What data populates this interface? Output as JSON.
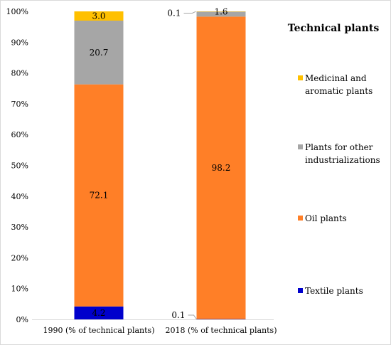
{
  "chart_data": {
    "type": "bar",
    "stacked": true,
    "percent": true,
    "legend_title": "Technical plants",
    "legend_position": "right",
    "categories": [
      "1990 (% of technical plants)",
      "2018 (% of technical plants)"
    ],
    "y_ticks": [
      "0%",
      "10%",
      "20%",
      "30%",
      "40%",
      "50%",
      "60%",
      "70%",
      "80%",
      "90%",
      "100%"
    ],
    "ylim": [
      0,
      100
    ],
    "series": [
      {
        "name": "Textile plants",
        "color": "#0000cc",
        "values": [
          4.2,
          0.1
        ],
        "labels": [
          "4.2",
          "0.1"
        ]
      },
      {
        "name": "Oil plants",
        "color": "#ff7f27",
        "values": [
          72.1,
          98.2
        ],
        "labels": [
          "72.1",
          "98.2"
        ]
      },
      {
        "name": "Plants for other industrializations",
        "legend_lines": [
          "Plants for other",
          "industrializations"
        ],
        "color": "#a6a6a6",
        "values": [
          20.7,
          1.6
        ],
        "labels": [
          "20.7",
          "1.6"
        ]
      },
      {
        "name": "Medicinal and aromatic plants",
        "legend_lines": [
          "Medicinal and",
          "aromatic plants"
        ],
        "color": "#ffc000",
        "values": [
          3.0,
          0.1
        ],
        "labels": [
          "3.0",
          "0.1"
        ]
      }
    ]
  }
}
